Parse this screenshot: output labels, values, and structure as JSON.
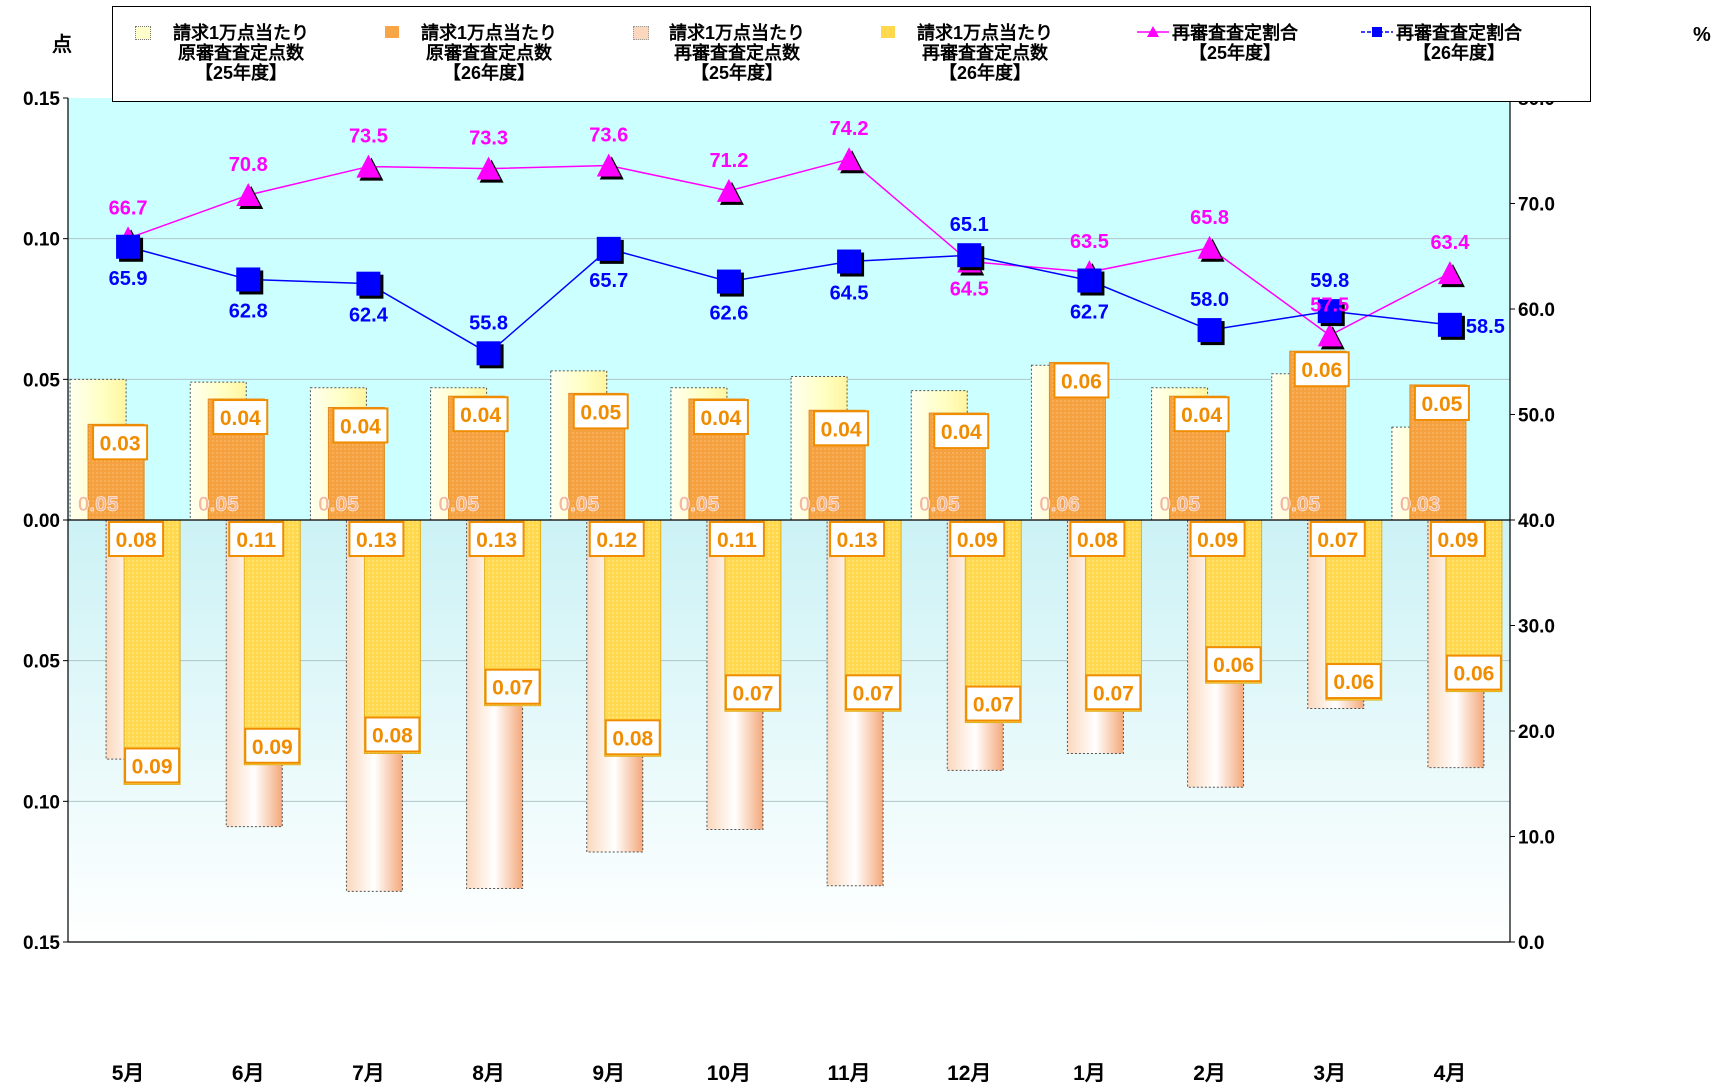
{
  "left_unit": "点",
  "right_unit": "%",
  "legend": [
    {
      "lines": [
        "請求1万点当たり",
        "原審査査定点数",
        "【25年度】"
      ],
      "style": "pale-yellow"
    },
    {
      "lines": [
        "請求1万点当たり",
        "原審査査定点数",
        "【26年度】"
      ],
      "style": "orange"
    },
    {
      "lines": [
        "請求1万点当たり",
        "再審査査定点数",
        "【25年度】"
      ],
      "style": "peach"
    },
    {
      "lines": [
        "請求1万点当たり",
        "再審査査定点数",
        "【26年度】"
      ],
      "style": "yellow"
    },
    {
      "lines": [
        "再審査査定割合",
        "【25年度】"
      ],
      "style": "magenta-triangle"
    },
    {
      "lines": [
        "再審査査定割合",
        "【26年度】"
      ],
      "style": "blue-square"
    }
  ],
  "colors": {
    "upper_bg": "#ccffff",
    "pale_yellow": "#ffffcc",
    "orange": "#f7a545",
    "peach": "#f9c8a3",
    "yellow": "#ffd966",
    "magenta": "#ff00ff",
    "blue": "#0000ff",
    "label_orange": "#f08c00"
  },
  "chart_data": {
    "type": "bar+line",
    "categories": [
      "5月",
      "6月",
      "7月",
      "8月",
      "9月",
      "10月",
      "11月",
      "12月",
      "1月",
      "2月",
      "3月",
      "4月"
    ],
    "left_axis": {
      "ticks": [
        "0.15",
        "0.10",
        "0.05",
        "0.00",
        "0.05",
        "0.10",
        "0.15"
      ],
      "upper_max": 0.15,
      "lower_max": 0.15
    },
    "right_axis": {
      "ticks": [
        "80.0",
        "70.0",
        "60.0",
        "50.0",
        "40.0",
        "30.0",
        "20.0",
        "10.0",
        "0.0"
      ],
      "range": [
        0,
        80
      ]
    },
    "series": [
      {
        "name": "請求1万点当たり原審査査定点数【25年度】",
        "direction": "up",
        "values": [
          0.05,
          0.049,
          0.047,
          0.047,
          0.053,
          0.047,
          0.051,
          0.046,
          0.055,
          0.047,
          0.052,
          0.033
        ],
        "labels": [
          "0.05",
          "0.05",
          "0.05",
          "0.05",
          "0.05",
          "0.05",
          "0.05",
          "0.05",
          "0.06",
          "0.05",
          "0.05",
          "0.03"
        ]
      },
      {
        "name": "請求1万点当たり原審査査定点数【26年度】",
        "direction": "up",
        "values": [
          0.034,
          0.043,
          0.04,
          0.044,
          0.045,
          0.043,
          0.039,
          0.038,
          0.056,
          0.044,
          0.06,
          0.048
        ],
        "labels": [
          "0.03",
          "0.04",
          "0.04",
          "0.04",
          "0.05",
          "0.04",
          "0.04",
          "0.04",
          "0.06",
          "0.04",
          "0.06",
          "0.05"
        ]
      },
      {
        "name": "請求1万点当たり再審査査定点数【25年度】",
        "direction": "down",
        "values": [
          0.085,
          0.109,
          0.132,
          0.131,
          0.118,
          0.11,
          0.13,
          0.089,
          0.083,
          0.095,
          0.067,
          0.088
        ],
        "labels": [
          "0.08",
          "0.11",
          "0.13",
          "0.13",
          "0.12",
          "0.11",
          "0.13",
          "0.09",
          "0.08",
          "0.09",
          "0.07",
          "0.09"
        ]
      },
      {
        "name": "請求1万点当たり再審査査定点数【26年度】",
        "direction": "down",
        "values": [
          0.094,
          0.087,
          0.083,
          0.066,
          0.084,
          0.068,
          0.068,
          0.072,
          0.068,
          0.058,
          0.064,
          0.061
        ],
        "labels": [
          "0.09",
          "0.09",
          "0.08",
          "0.07",
          "0.08",
          "0.07",
          "0.07",
          "0.07",
          "0.07",
          "0.06",
          "0.06",
          "0.06"
        ]
      },
      {
        "name": "再審査査定割合【25年度】",
        "axis": "right",
        "values": [
          66.7,
          70.8,
          73.5,
          73.3,
          73.6,
          71.2,
          74.2,
          64.5,
          63.5,
          65.8,
          57.5,
          63.4
        ],
        "labels": [
          "66.7",
          "70.8",
          "73.5",
          "73.3",
          "73.6",
          "71.2",
          "74.2",
          "64.5",
          "63.5",
          "65.8",
          "57.5",
          "63.4"
        ]
      },
      {
        "name": "再審査査定割合【26年度】",
        "axis": "right",
        "values": [
          65.9,
          62.8,
          62.4,
          55.8,
          65.7,
          62.6,
          64.5,
          65.1,
          62.7,
          58.0,
          59.8,
          58.5
        ],
        "labels": [
          "65.9",
          "62.8",
          "62.4",
          "55.8",
          "65.7",
          "62.6",
          "64.5",
          "65.1",
          "62.7",
          "58.0",
          "59.8",
          "58.5"
        ]
      }
    ]
  }
}
